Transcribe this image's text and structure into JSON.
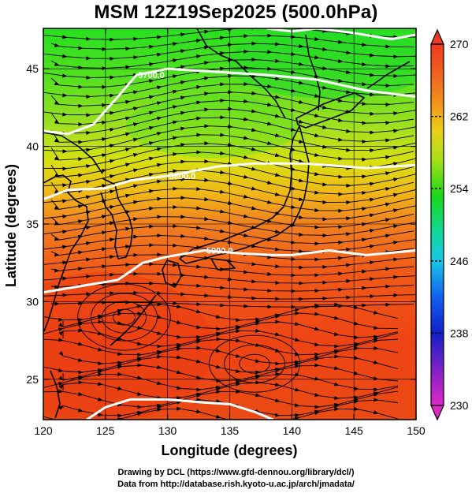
{
  "title": "MSM 12Z19Sep2025 (500.0hPa)",
  "x_axis": {
    "label": "Longitude (degrees)",
    "ticks": [
      "120",
      "125",
      "130",
      "135",
      "140",
      "145",
      "150"
    ]
  },
  "y_axis": {
    "label": "Latitude  (degrees)",
    "ticks": [
      "25",
      "30",
      "35",
      "40",
      "45"
    ]
  },
  "colorbar": {
    "ticks": [
      "230",
      "238",
      "246",
      "254",
      "262",
      "270"
    ]
  },
  "contour_labels": [
    "5700.0",
    "5800.0",
    "5900.0"
  ],
  "credits": {
    "line1": "Drawing by DCL (https://www.gfd-dennou.org/library/dcl/)",
    "line2": "Data from http://database.rish.kyoto-u.ac.jp/arch/jmadata/"
  },
  "chart_data": {
    "type": "heatmap",
    "title": "MSM 12Z19Sep2025 (500.0hPa)",
    "xlabel": "Longitude (degrees)",
    "ylabel": "Latitude  (degrees)",
    "xlim": [
      120,
      150
    ],
    "ylim": [
      22.4,
      47.6
    ],
    "colorbar_range": [
      230,
      270
    ],
    "contours": [
      {
        "label": "5700.0",
        "points": [
          [
            120,
            41.0
          ],
          [
            122,
            40.8
          ],
          [
            124,
            41.4
          ],
          [
            126,
            43.2
          ],
          [
            127.5,
            44.6
          ],
          [
            130,
            45.0
          ],
          [
            134,
            44.8
          ],
          [
            138,
            44.6
          ],
          [
            142,
            44.3
          ],
          [
            146,
            43.6
          ],
          [
            150,
            43.2
          ]
        ]
      },
      {
        "label": "5800.0",
        "points": [
          [
            120,
            36.6
          ],
          [
            122,
            37.2
          ],
          [
            125,
            37.3
          ],
          [
            127,
            37.8
          ],
          [
            130,
            38.1
          ],
          [
            134,
            38.7
          ],
          [
            137,
            38.9
          ],
          [
            141,
            38.9
          ],
          [
            146,
            38.6
          ],
          [
            150,
            38.8
          ]
        ]
      },
      {
        "label": "5900.0",
        "points": [
          [
            120,
            30.6
          ],
          [
            123,
            31.0
          ],
          [
            126,
            31.4
          ],
          [
            128,
            32.5
          ],
          [
            130,
            32.9
          ],
          [
            133,
            33.3
          ],
          [
            136,
            33.1
          ],
          [
            138.5,
            33.0
          ],
          [
            140,
            33.0
          ],
          [
            143,
            33.3
          ],
          [
            146,
            33.0
          ],
          [
            150,
            33.3
          ]
        ]
      },
      {
        "label": "",
        "points": [
          [
            138,
            47.6
          ],
          [
            140,
            47.4
          ],
          [
            142,
            47.6
          ],
          [
            145,
            47.3
          ],
          [
            148,
            46.9
          ],
          [
            150,
            47.2
          ]
        ]
      },
      {
        "label": "",
        "points": [
          [
            123.5,
            22.4
          ],
          [
            125,
            23.2
          ],
          [
            127,
            23.7
          ],
          [
            130,
            23.7
          ],
          [
            133,
            23.5
          ],
          [
            135,
            23.4
          ],
          [
            137,
            22.9
          ],
          [
            138.5,
            22.4
          ]
        ]
      }
    ]
  }
}
